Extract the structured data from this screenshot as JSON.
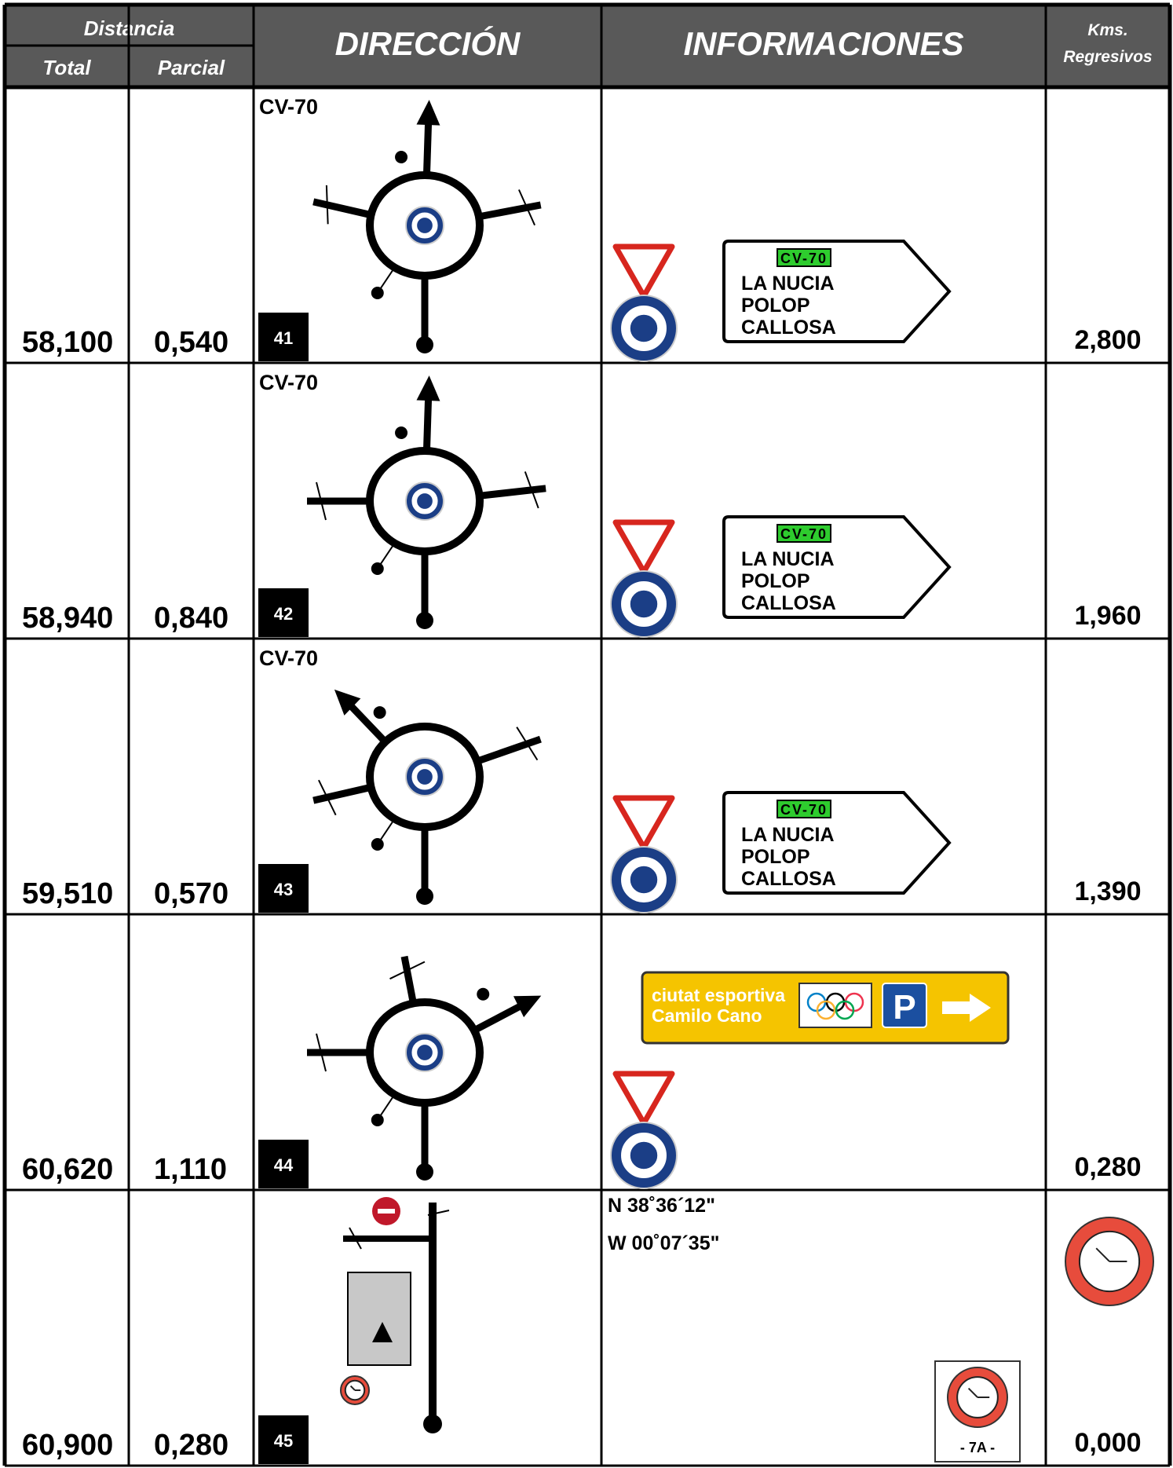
{
  "header": {
    "distancia": "Distancia",
    "total": "Total",
    "parcial": "Parcial",
    "direccion": "DIRECCIÓN",
    "informaciones": "INFORMACIONES",
    "kms": "Kms.",
    "regresivos": "Regresivos"
  },
  "rows": [
    {
      "total": "58,100",
      "parcial": "0,540",
      "road": "CV-70",
      "number": "41",
      "sign": {
        "road": "CV-70",
        "lines": [
          "LA NUCIA",
          "POLOP",
          "CALLOSA"
        ]
      },
      "kms": "2,800"
    },
    {
      "total": "58,940",
      "parcial": "0,840",
      "road": "CV-70",
      "number": "42",
      "sign": {
        "road": "CV-70",
        "lines": [
          "LA NUCIA",
          "POLOP",
          "CALLOSA"
        ]
      },
      "kms": "1,960"
    },
    {
      "total": "59,510",
      "parcial": "0,570",
      "road": "CV-70",
      "number": "43",
      "sign": {
        "road": "CV-70",
        "lines": [
          "LA NUCIA",
          "POLOP",
          "CALLOSA"
        ]
      },
      "kms": "1,390"
    },
    {
      "total": "60,620",
      "parcial": "1,110",
      "number": "44",
      "panel": {
        "lines": [
          "ciutat esportiva",
          "Camilo Cano"
        ],
        "parking": "P"
      },
      "kms": "0,280"
    },
    {
      "total": "60,900",
      "parcial": "0,280",
      "number": "45",
      "coords": [
        "N 38˚36´12\"",
        "W 00˚07´35\""
      ],
      "stamp": "- 7A -",
      "kms": "0,000"
    }
  ]
}
